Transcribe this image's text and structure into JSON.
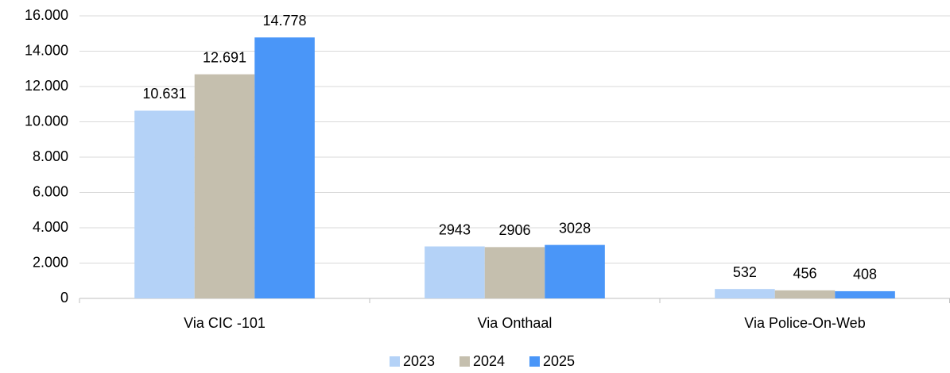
{
  "chart_data": {
    "type": "bar",
    "categories": [
      "Via CIC -101",
      "Via Onthaal",
      "Via Police-On-Web"
    ],
    "series": [
      {
        "name": "2023",
        "color": "#b4d2f7",
        "values": [
          10631,
          2943,
          532
        ],
        "value_labels": [
          "10.631",
          "2943",
          "532"
        ]
      },
      {
        "name": "2024",
        "color": "#c5bfae",
        "values": [
          12691,
          2906,
          456
        ],
        "value_labels": [
          "12.691",
          "2906",
          "456"
        ]
      },
      {
        "name": "2025",
        "color": "#4a96f8",
        "values": [
          14778,
          3028,
          408
        ],
        "value_labels": [
          "14.778",
          "3028",
          "408"
        ]
      }
    ],
    "ylim": [
      0,
      16000
    ],
    "yticks": [
      0,
      {
        "value": 2000,
        "label": "2.000"
      },
      {
        "value": 4000,
        "label": "4.000"
      },
      {
        "value": 6000,
        "label": "6.000"
      },
      {
        "value": 8000,
        "label": "8.000"
      },
      {
        "value": 10000,
        "label": "10.000"
      },
      {
        "value": 12000,
        "label": "12.000"
      },
      {
        "value": 14000,
        "label": "14.000"
      },
      {
        "value": 16000,
        "label": "16.000"
      }
    ],
    "grid": true,
    "legend": "bottom"
  }
}
